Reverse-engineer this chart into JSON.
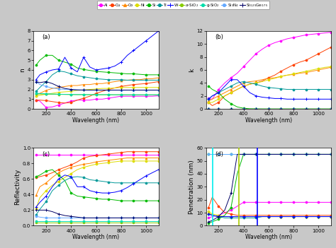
{
  "wavelengths": [
    120,
    150,
    200,
    250,
    300,
    350,
    400,
    450,
    500,
    550,
    600,
    650,
    700,
    750,
    800,
    850,
    900,
    950,
    1000,
    1050,
    1100
  ],
  "n_data": {
    "Al": [
      0.9,
      0.8,
      0.15,
      0.2,
      0.4,
      0.6,
      0.8,
      0.9,
      0.9,
      0.9,
      1.0,
      1.0,
      1.1,
      1.2,
      1.3,
      1.3,
      1.3,
      1.3,
      1.3,
      1.3,
      1.35
    ],
    "Cu": [
      0.9,
      0.9,
      0.85,
      0.75,
      0.65,
      0.6,
      0.65,
      0.9,
      1.1,
      1.3,
      1.6,
      1.8,
      2.0,
      2.15,
      2.3,
      2.4,
      2.5,
      2.55,
      2.6,
      2.7,
      2.8
    ],
    "Co": [
      1.4,
      1.6,
      1.9,
      2.1,
      2.2,
      2.3,
      2.4,
      2.4,
      2.5,
      2.5,
      2.6,
      2.6,
      2.7,
      2.8,
      2.9,
      2.95,
      3.0,
      3.0,
      3.1,
      3.1,
      3.2
    ],
    "Ni": [
      1.3,
      1.4,
      1.5,
      1.6,
      1.7,
      1.75,
      1.8,
      1.9,
      1.95,
      2.0,
      2.05,
      2.1,
      2.1,
      2.15,
      2.2,
      2.2,
      2.2,
      2.2,
      2.2,
      2.2,
      2.2
    ],
    "Si": [
      4.5,
      5.0,
      5.5,
      5.5,
      5.0,
      4.8,
      4.6,
      4.2,
      4.05,
      3.95,
      3.85,
      3.8,
      3.75,
      3.7,
      3.65,
      3.6,
      3.6,
      3.55,
      3.5,
      3.5,
      3.5
    ],
    "Ti": [
      1.8,
      2.2,
      2.8,
      3.5,
      3.9,
      3.8,
      3.6,
      3.4,
      3.3,
      3.2,
      3.1,
      3.05,
      3.0,
      3.0,
      3.0,
      2.95,
      2.95,
      2.95,
      2.95,
      2.95,
      2.95
    ],
    "W": [
      3.0,
      3.5,
      3.8,
      4.0,
      4.1,
      5.3,
      4.2,
      3.8,
      5.3,
      4.3,
      4.0,
      4.1,
      4.2,
      4.4,
      4.8,
      5.5,
      6.0,
      6.5,
      7.0,
      7.5,
      8.0
    ],
    "a-SiO2": [
      1.55,
      1.53,
      1.51,
      1.5,
      1.49,
      1.48,
      1.47,
      1.46,
      1.46,
      1.46,
      1.45,
      1.45,
      1.45,
      1.45,
      1.45,
      1.44,
      1.44,
      1.44,
      1.44,
      1.44,
      1.44
    ],
    "g-SiO2": [
      1.6,
      1.58,
      1.55,
      1.53,
      1.51,
      1.49,
      1.48,
      1.47,
      1.47,
      1.46,
      1.46,
      1.46,
      1.46,
      1.45,
      1.45,
      1.45,
      1.45,
      1.45,
      1.45,
      1.45,
      1.45
    ],
    "Si3N4": [
      2.8,
      2.5,
      2.3,
      2.15,
      2.05,
      2.0,
      1.97,
      1.95,
      1.94,
      1.93,
      1.93,
      1.92,
      1.92,
      1.92,
      1.92,
      1.92,
      1.92,
      1.92,
      1.92,
      1.92,
      1.92
    ],
    "SiGe": [
      2.8,
      2.7,
      2.8,
      2.6,
      2.3,
      2.1,
      2.0,
      1.95,
      1.93,
      1.93,
      1.93,
      1.93,
      1.93,
      1.93,
      1.93,
      1.93,
      1.93,
      1.93,
      1.93,
      1.93,
      1.93
    ]
  },
  "k_data": {
    "Al": [
      1.6,
      1.5,
      3.0,
      4.0,
      4.8,
      5.5,
      6.5,
      7.5,
      8.5,
      9.2,
      9.8,
      10.2,
      10.5,
      10.8,
      11.0,
      11.2,
      11.4,
      11.5,
      11.6,
      11.7,
      11.8
    ],
    "Cu": [
      1.0,
      0.5,
      1.0,
      2.0,
      2.5,
      3.0,
      3.5,
      3.8,
      4.0,
      4.3,
      4.8,
      5.2,
      5.8,
      6.3,
      6.8,
      7.2,
      7.5,
      8.0,
      8.5,
      9.0,
      9.5
    ],
    "Co": [
      1.2,
      1.5,
      2.0,
      2.5,
      3.0,
      3.5,
      4.0,
      4.2,
      4.3,
      4.5,
      4.7,
      4.8,
      5.0,
      5.2,
      5.3,
      5.5,
      5.6,
      5.8,
      6.0,
      6.2,
      6.4
    ],
    "Ni": [
      1.0,
      1.0,
      1.5,
      2.0,
      2.5,
      3.0,
      3.5,
      3.8,
      4.0,
      4.2,
      4.5,
      4.7,
      5.0,
      5.2,
      5.4,
      5.6,
      5.8,
      6.0,
      6.2,
      6.4,
      6.5
    ],
    "Si": [
      3.5,
      3.0,
      2.5,
      1.5,
      0.8,
      0.3,
      0.1,
      0.02,
      0.01,
      0.0,
      0.0,
      0.0,
      0.0,
      0.0,
      0.0,
      0.0,
      0.0,
      0.0,
      0.0,
      0.0,
      0.0
    ],
    "Ti": [
      1.5,
      2.0,
      2.5,
      3.0,
      3.5,
      4.0,
      4.2,
      4.0,
      3.8,
      3.5,
      3.3,
      3.2,
      3.1,
      3.0,
      3.0,
      3.0,
      3.0,
      3.0,
      3.0,
      3.0,
      3.0
    ],
    "W": [
      1.5,
      2.0,
      2.5,
      3.5,
      4.5,
      4.5,
      3.5,
      2.5,
      2.0,
      1.8,
      1.7,
      1.6,
      1.6,
      1.5,
      1.5,
      1.5,
      1.5,
      1.5,
      1.5,
      1.5,
      1.5
    ],
    "a-SiO2": [
      0.0,
      0.0,
      0.0,
      0.0,
      0.0,
      0.0,
      0.0,
      0.0,
      0.0,
      0.0,
      0.0,
      0.0,
      0.0,
      0.0,
      0.0,
      0.0,
      0.0,
      0.0,
      0.0,
      0.0,
      0.0
    ],
    "g-SiO2": [
      0.0,
      0.0,
      0.0,
      0.0,
      0.0,
      0.0,
      0.0,
      0.0,
      0.0,
      0.0,
      0.0,
      0.0,
      0.0,
      0.0,
      0.0,
      0.0,
      0.0,
      0.0,
      0.0,
      0.0,
      0.0
    ],
    "Si3N4": [
      0.0,
      0.0,
      0.0,
      0.0,
      0.0,
      0.0,
      0.0,
      0.0,
      0.0,
      0.0,
      0.0,
      0.0,
      0.0,
      0.0,
      0.0,
      0.0,
      0.0,
      0.0,
      0.0,
      0.0,
      0.0
    ],
    "SiGe": [
      0.0,
      0.0,
      0.0,
      0.0,
      0.0,
      0.0,
      0.0,
      0.0,
      0.0,
      0.0,
      0.0,
      0.0,
      0.0,
      0.0,
      0.0,
      0.0,
      0.0,
      0.0,
      0.0,
      0.0,
      0.0
    ]
  },
  "R_data": {
    "Al": [
      0.91,
      0.91,
      0.91,
      0.91,
      0.91,
      0.91,
      0.91,
      0.91,
      0.91,
      0.91,
      0.91,
      0.91,
      0.91,
      0.91,
      0.91,
      0.91,
      0.91,
      0.91,
      0.91,
      0.91,
      0.91
    ],
    "Cu": [
      0.62,
      0.63,
      0.65,
      0.68,
      0.72,
      0.75,
      0.78,
      0.82,
      0.87,
      0.89,
      0.9,
      0.91,
      0.92,
      0.93,
      0.94,
      0.95,
      0.95,
      0.95,
      0.95,
      0.95,
      0.95
    ],
    "Co": [
      0.39,
      0.5,
      0.55,
      0.62,
      0.68,
      0.72,
      0.75,
      0.77,
      0.79,
      0.8,
      0.82,
      0.83,
      0.84,
      0.85,
      0.86,
      0.87,
      0.87,
      0.87,
      0.87,
      0.87,
      0.87
    ],
    "Ni": [
      0.22,
      0.36,
      0.45,
      0.52,
      0.57,
      0.62,
      0.67,
      0.72,
      0.75,
      0.77,
      0.79,
      0.8,
      0.81,
      0.82,
      0.83,
      0.83,
      0.83,
      0.83,
      0.83,
      0.83,
      0.83
    ],
    "Si": [
      0.63,
      0.65,
      0.7,
      0.72,
      0.65,
      0.58,
      0.42,
      0.38,
      0.37,
      0.36,
      0.35,
      0.34,
      0.34,
      0.33,
      0.32,
      0.32,
      0.32,
      0.32,
      0.32,
      0.32,
      0.32
    ],
    "Ti": [
      0.14,
      0.21,
      0.31,
      0.45,
      0.52,
      0.58,
      0.62,
      0.63,
      0.62,
      0.59,
      0.58,
      0.57,
      0.56,
      0.55,
      0.55,
      0.55,
      0.55,
      0.55,
      0.55,
      0.55,
      0.55
    ],
    "W": [
      0.24,
      0.3,
      0.38,
      0.5,
      0.6,
      0.65,
      0.63,
      0.5,
      0.5,
      0.45,
      0.43,
      0.42,
      0.42,
      0.43,
      0.45,
      0.49,
      0.54,
      0.59,
      0.64,
      0.68,
      0.72
    ],
    "a-SiO2": [
      0.04,
      0.04,
      0.04,
      0.04,
      0.04,
      0.04,
      0.04,
      0.04,
      0.04,
      0.04,
      0.04,
      0.04,
      0.04,
      0.04,
      0.04,
      0.04,
      0.04,
      0.04,
      0.04,
      0.04,
      0.04
    ],
    "g-SiO2": [
      0.055,
      0.055,
      0.055,
      0.055,
      0.055,
      0.055,
      0.055,
      0.055,
      0.055,
      0.055,
      0.055,
      0.055,
      0.055,
      0.055,
      0.055,
      0.055,
      0.055,
      0.055,
      0.055,
      0.055,
      0.055
    ],
    "Si3N4": [
      0.12,
      0.11,
      0.1,
      0.1,
      0.1,
      0.1,
      0.1,
      0.1,
      0.1,
      0.1,
      0.1,
      0.1,
      0.1,
      0.1,
      0.1,
      0.1,
      0.1,
      0.1,
      0.1,
      0.1,
      0.1
    ],
    "SiGe": [
      0.2,
      0.2,
      0.2,
      0.18,
      0.15,
      0.13,
      0.12,
      0.11,
      0.1,
      0.1,
      0.1,
      0.1,
      0.1,
      0.1,
      0.1,
      0.1,
      0.1,
      0.1,
      0.1,
      0.1,
      0.1
    ]
  },
  "P_data": {
    "Al": [
      6,
      7,
      8,
      10,
      12,
      15,
      18,
      18,
      18,
      18,
      18,
      18,
      18,
      18,
      18,
      18,
      18,
      18,
      18,
      18,
      18
    ],
    "Cu": [
      14,
      22,
      15,
      10,
      9,
      8,
      8,
      8,
      8,
      8,
      8,
      8,
      8,
      8,
      8,
      8,
      8,
      8,
      8,
      8,
      8
    ],
    "Co": [
      10,
      8,
      7,
      7,
      7,
      7,
      7,
      7,
      7,
      7,
      7,
      7,
      7,
      7,
      7,
      7,
      7,
      7,
      7,
      7,
      7
    ],
    "Ni": [
      11,
      9,
      8,
      7,
      7,
      7,
      7,
      7,
      7,
      7,
      7,
      7,
      7,
      7,
      7,
      7,
      7,
      7,
      7,
      7,
      7
    ],
    "Si": [
      2,
      3,
      5,
      8,
      14,
      40,
      55,
      55,
      55,
      55,
      55,
      55,
      55,
      55,
      55,
      55,
      55,
      55,
      55,
      55,
      55
    ],
    "Ti": [
      9,
      8,
      7,
      6,
      6,
      6,
      6,
      6,
      6,
      7,
      7,
      7,
      7,
      7,
      7,
      7,
      7,
      7,
      7,
      7,
      7
    ],
    "W": [
      9,
      8,
      7,
      7,
      7,
      7,
      7,
      7,
      7,
      7,
      7,
      7,
      7,
      7,
      7,
      7,
      7,
      7,
      7,
      7,
      7
    ],
    "a-SiO2": [
      55,
      55,
      55,
      55,
      55,
      55,
      55,
      55,
      55,
      55,
      55,
      55,
      55,
      55,
      55,
      55,
      55,
      55,
      55,
      55,
      55
    ],
    "g-SiO2": [
      55,
      55,
      55,
      55,
      55,
      55,
      55,
      55,
      55,
      55,
      55,
      55,
      55,
      55,
      55,
      55,
      55,
      55,
      55,
      55,
      55
    ],
    "Si3N4": [
      55,
      55,
      55,
      55,
      55,
      55,
      55,
      55,
      55,
      55,
      55,
      55,
      55,
      55,
      55,
      55,
      55,
      55,
      55,
      55,
      55
    ],
    "SiGe": [
      3,
      4,
      7,
      12,
      25,
      55,
      55,
      55,
      55,
      55,
      55,
      55,
      55,
      55,
      55,
      55,
      55,
      55,
      55,
      55,
      55
    ]
  },
  "colors": {
    "Al": "#ff00ff",
    "Cu": "#ff4000",
    "Co": "#ff8800",
    "Ni": "#dddd00",
    "Si": "#00bb00",
    "Ti": "#009999",
    "W": "#0000ff",
    "a-SiO2": "#88cc00",
    "g-SiO2": "#00ddaa",
    "Si3N4": "#66aaff",
    "SiGe": "#000066"
  },
  "markers": {
    "Al": "o",
    "Cu": "o",
    "Co": "^",
    "Ni": "o",
    "Si": "o",
    "Ti": "o",
    "W": "+",
    "a-SiO2": "o",
    "g-SiO2": "o",
    "Si3N4": "o",
    "SiGe": "+"
  },
  "bg_color": "#c8c8c8",
  "panel_bg": "#ffffff",
  "xlabel": "Wavelength (nm)",
  "ylabel_a": "n",
  "ylabel_b": "k",
  "ylabel_c": "Reflectivity",
  "ylabel_d": "Penetration (nm)",
  "ylim_a": [
    0,
    8
  ],
  "ylim_b": [
    0,
    12
  ],
  "ylim_c": [
    0.0,
    1.0
  ],
  "ylim_d": [
    0,
    60
  ],
  "xlim": [
    100,
    1100
  ],
  "xticks": [
    200,
    400,
    600,
    800,
    1000
  ],
  "yticks_a": [
    0,
    1,
    2,
    3,
    4,
    5,
    6,
    7,
    8
  ],
  "yticks_b": [
    0,
    2,
    4,
    6,
    8,
    10,
    12
  ],
  "yticks_c": [
    0.0,
    0.2,
    0.4,
    0.6,
    0.8,
    1.0
  ],
  "yticks_d": [
    0,
    10,
    20,
    30,
    40,
    50,
    60
  ],
  "vlines_d": [
    {
      "x": 155,
      "color": "#00eeee",
      "lw": 1.2
    },
    {
      "x": 365,
      "color": "#aacc00",
      "lw": 1.2
    },
    {
      "x": 510,
      "color": "#0000ff",
      "lw": 1.2
    }
  ]
}
